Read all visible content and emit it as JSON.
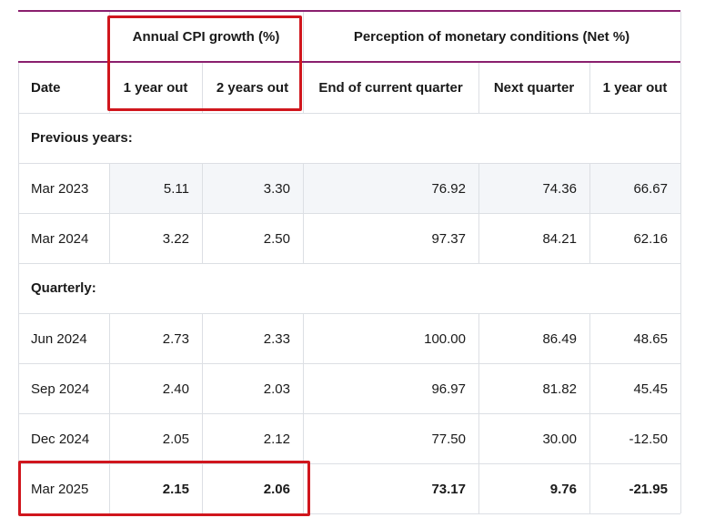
{
  "table": {
    "group_headers": [
      "Annual CPI growth (%)",
      "Perception of monetary conditions (Net %)"
    ],
    "columns": [
      "Date",
      "1 year out",
      "2 years out",
      "End of current quarter",
      "Next quarter",
      "1 year out"
    ],
    "sections": [
      {
        "label": "Previous years:",
        "rows": [
          [
            "Mar 2023",
            "5.11",
            "3.30",
            "76.92",
            "74.36",
            "66.67"
          ],
          [
            "Mar 2024",
            "3.22",
            "2.50",
            "97.37",
            "84.21",
            "62.16"
          ]
        ]
      },
      {
        "label": "Quarterly:",
        "rows": [
          [
            "Jun 2024",
            "2.73",
            "2.33",
            "100.00",
            "86.49",
            "48.65"
          ],
          [
            "Sep 2024",
            "2.40",
            "2.03",
            "96.97",
            "81.82",
            "45.45"
          ],
          [
            "Dec 2024",
            "2.05",
            "2.12",
            "77.50",
            "30.00",
            "-12.50"
          ],
          [
            "Mar 2025",
            "2.15",
            "2.06",
            "73.17",
            "9.76",
            "-21.95"
          ]
        ]
      }
    ]
  }
}
